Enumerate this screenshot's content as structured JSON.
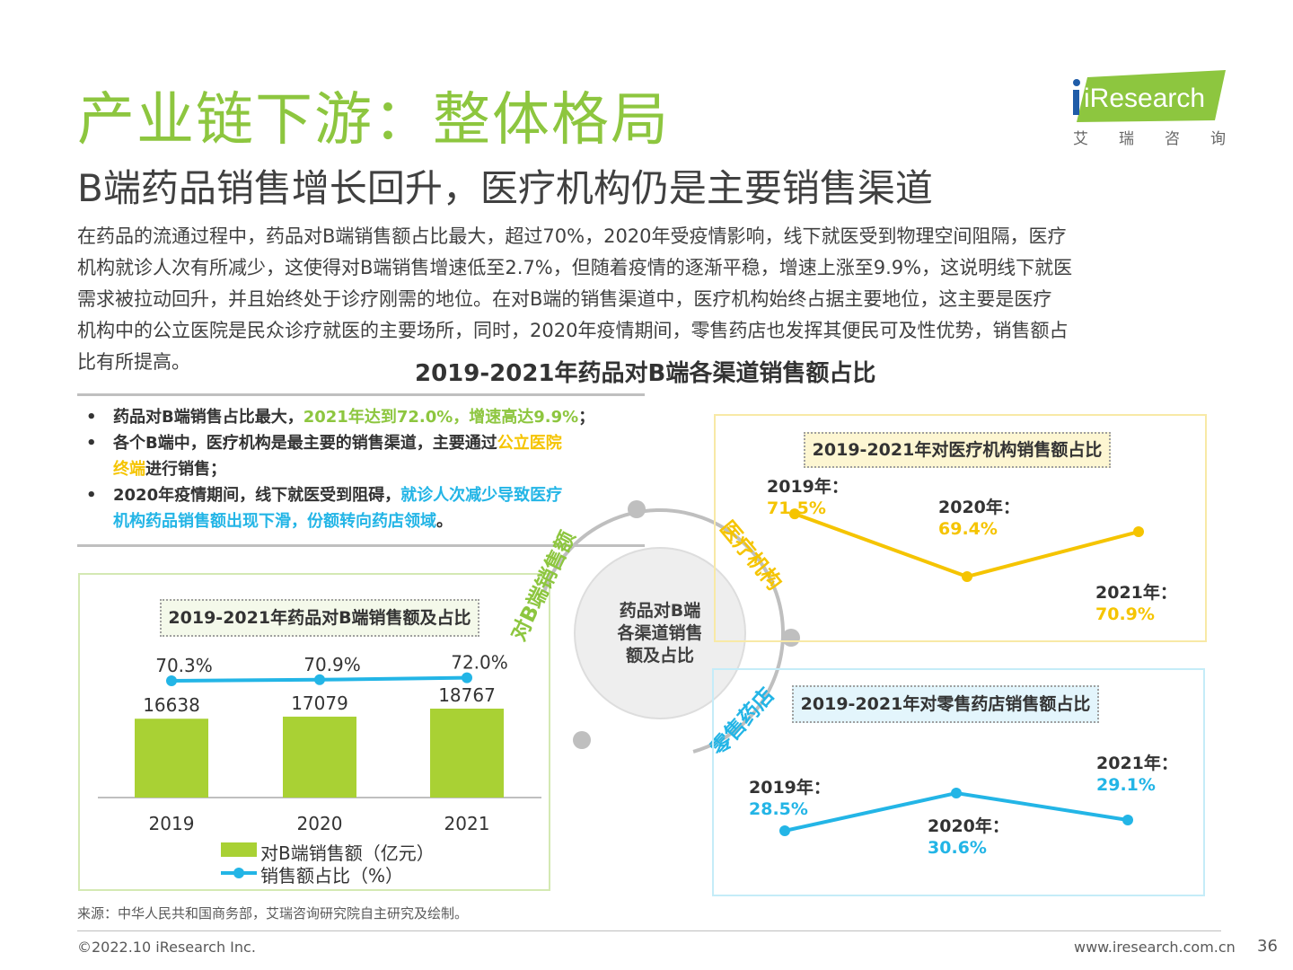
{
  "header": {
    "title": "产业链下游：整体格局",
    "subtitle": "B端药品销售增长回升，医疗机构仍是主要销售渠道",
    "logo_text": "iResearch",
    "logo_cn": "艾瑞咨询",
    "brand_green": "#8dc63f"
  },
  "body_lines": [
    "在药品的流通过程中，药品对B端销售额占比最大，超过70%，2020年受疫情影响，线下就医受到物理空间阻隔，医疗",
    "机构就诊人次有所减少，这使得对B端销售增速低至2.7%，但随着疫情的逐渐平稳，增速上涨至9.9%，这说明线下就医",
    "需求被拉动回升，并且始终处于诊疗刚需的地位。在对B端的销售渠道中，医疗机构始终占据主要地位，这主要是医疗",
    "机构中的公立医院是民众诊疗就医的主要场所，同时，2020年疫情期间，零售药店也发挥其便民可及性优势，销售额占",
    "比有所提高。"
  ],
  "main_chart_title": "2019-2021年药品对B端各渠道销售额占比",
  "bullets": [
    {
      "a": "药品对B端销售占比最大，",
      "b": "2021年达到72.0%，增速高达9.9%",
      "c": "；"
    },
    {
      "a": "各个B端中，医疗机构是最主要的销售渠道，主要通过",
      "b1": "公立医院",
      "b2": "终端",
      "c": "进行销售；"
    },
    {
      "a": "2020年疫情期间，线下就医受到阻碍，",
      "b1": "就诊人次减少导致医疗",
      "b2": "机构药品销售额出现下滑，份额转向药店领域",
      "c": "。"
    }
  ],
  "center": {
    "circle_lines": [
      "药品对B端",
      "各渠道销售",
      "额及占比"
    ],
    "arc_label_b": "对B端销售额",
    "arc_label_med": "医疗机构",
    "arc_label_pharm": "零售药店"
  },
  "colors": {
    "green": "#8dc63f",
    "yellow": "#f5c400",
    "cyan": "#23b5e6",
    "gray": "#bfbfbf"
  },
  "chart_data": [
    {
      "type": "bar",
      "title": "2019-2021年药品对B端销售额及占比",
      "categories": [
        "2019",
        "2020",
        "2021"
      ],
      "series": [
        {
          "name": "对B端销售额（亿元）",
          "type": "bar",
          "values": [
            16638,
            17079,
            18767
          ],
          "labels": [
            "16638",
            "17079",
            "18767"
          ]
        },
        {
          "name": "销售额占比（%）",
          "type": "line",
          "values": [
            70.3,
            70.9,
            72.0
          ],
          "labels": [
            "70.3%",
            "70.9%",
            "72.0%"
          ]
        }
      ]
    },
    {
      "type": "line",
      "title": "2019-2021年对医疗机构销售额占比",
      "points": [
        {
          "year": "2019年：",
          "value": 71.5,
          "label": "71.5%"
        },
        {
          "year": "2020年：",
          "value": 69.4,
          "label": "69.4%"
        },
        {
          "year": "2021年：",
          "value": 70.9,
          "label": "70.9%"
        }
      ]
    },
    {
      "type": "line",
      "title": "2019-2021年对零售药店销售额占比",
      "points": [
        {
          "year": "2019年：",
          "value": 28.5,
          "label": "28.5%"
        },
        {
          "year": "2020年：",
          "value": 30.6,
          "label": "30.6%"
        },
        {
          "year": "2021年：",
          "value": 29.1,
          "label": "29.1%"
        }
      ]
    }
  ],
  "footer": {
    "source": "来源：中华人民共和国商务部，艾瑞咨询研究院自主研究及绘制。",
    "copyright": "©2022.10 iResearch Inc.",
    "url": "www.iresearch.com.cn",
    "page": "36"
  }
}
